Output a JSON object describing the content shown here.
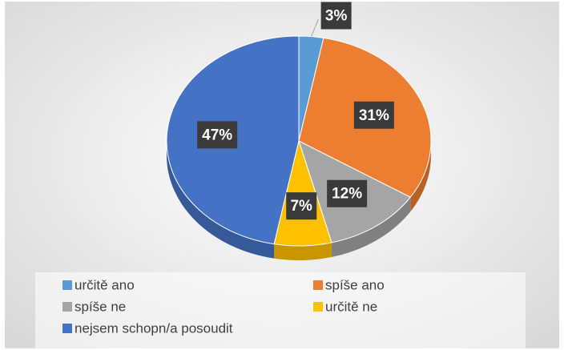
{
  "chart_data": {
    "type": "pie",
    "categories": [
      "určitě ano",
      "spíše ano",
      "spíše ne",
      "určitě ne",
      "nejsem schopn/a posoudit"
    ],
    "values": [
      3,
      31,
      12,
      7,
      47
    ],
    "value_labels": [
      "3%",
      "31%",
      "12%",
      "7%",
      "47%"
    ],
    "colors": [
      "#5b9bd5",
      "#ed7d31",
      "#a5a5a5",
      "#ffc000",
      "#4472c4"
    ],
    "legend": "bottom"
  }
}
